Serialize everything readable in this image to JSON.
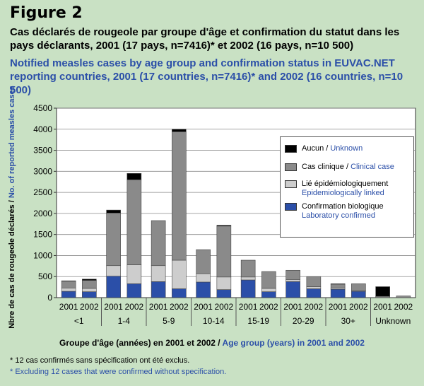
{
  "figure_label": "Figure 2",
  "title_fr": "Cas déclarés de rougeole par groupe d'âge et confirmation du statut dans les pays déclarants, 2001 (17 pays, n=7416)* et 2002 (16 pays, n=10 500)",
  "title_en": "Notified measles cases by age group and confirmation status in EUVAC.NET reporting countries, 2001 (17 countries, n=7416)* and 2002 (16 countries, n=10 500)",
  "footnote_fr": "* 12 cas confirmés sans spécification ont été exclus.",
  "footnote_en": "* Excluding 12 cases that were confirmed without specification.",
  "xaxis_title_fr": "Groupe d'âge (années) en 2001 et 2002 / ",
  "xaxis_title_en": "Age group (years) in 2001 and 2002",
  "yaxis_title_fr": "Nbre de cas de rougeole déclarés / ",
  "yaxis_title_en": "No. of reported measles cases",
  "colors": {
    "unknown": "#000000",
    "clinical": "#8a8a8a",
    "epi": "#cdcdcd",
    "lab": "#2b4fa8",
    "background": "#c9e1c4",
    "plot_bg": "#ffffff",
    "accent_text": "#2b4fa8"
  },
  "legend": [
    {
      "key": "unknown",
      "fr": "Aucun / ",
      "en": "Unknown"
    },
    {
      "key": "clinical",
      "fr": "Cas clinique / ",
      "en": "Clinical case"
    },
    {
      "key": "epi",
      "fr": "Lié épidémiologiquement",
      "en": "Epidemiologically linked",
      "two_lines": true
    },
    {
      "key": "lab",
      "fr": "Confirmation biologique",
      "en": "Laboratory confirmed",
      "two_lines": true
    }
  ],
  "chart_data": {
    "type": "bar",
    "stacked": true,
    "ylim": [
      0,
      4500
    ],
    "yticks": [
      0,
      500,
      1000,
      1500,
      2000,
      2500,
      3000,
      3500,
      4000,
      4500
    ],
    "grid": true,
    "legend_position": "top-right",
    "groups": [
      "<1",
      "1-4",
      "5-9",
      "10-14",
      "15-19",
      "20-29",
      "30+",
      "Unknown"
    ],
    "years": [
      "2001",
      "2002"
    ],
    "series": [
      {
        "name": "Confirmation biologique / Laboratory confirmed",
        "key": "lab",
        "values": [
          150,
          140,
          510,
          330,
          380,
          210,
          370,
          190,
          420,
          140,
          380,
          210,
          200,
          150,
          0,
          0
        ]
      },
      {
        "name": "Lié épidémiologiquement / Epidemiologically linked",
        "key": "epi",
        "values": [
          80,
          80,
          250,
          450,
          380,
          680,
          200,
          300,
          70,
          80,
          50,
          50,
          30,
          20,
          0,
          0
        ]
      },
      {
        "name": "Cas clinique / Clinical case",
        "key": "clinical",
        "values": [
          160,
          190,
          1250,
          2020,
          1070,
          3050,
          570,
          1210,
          400,
          400,
          220,
          240,
          90,
          160,
          30,
          40
        ]
      },
      {
        "name": "Aucun / Unknown",
        "key": "unknown",
        "values": [
          10,
          30,
          70,
          150,
          0,
          60,
          0,
          20,
          0,
          0,
          0,
          0,
          10,
          0,
          230,
          0
        ]
      }
    ]
  }
}
